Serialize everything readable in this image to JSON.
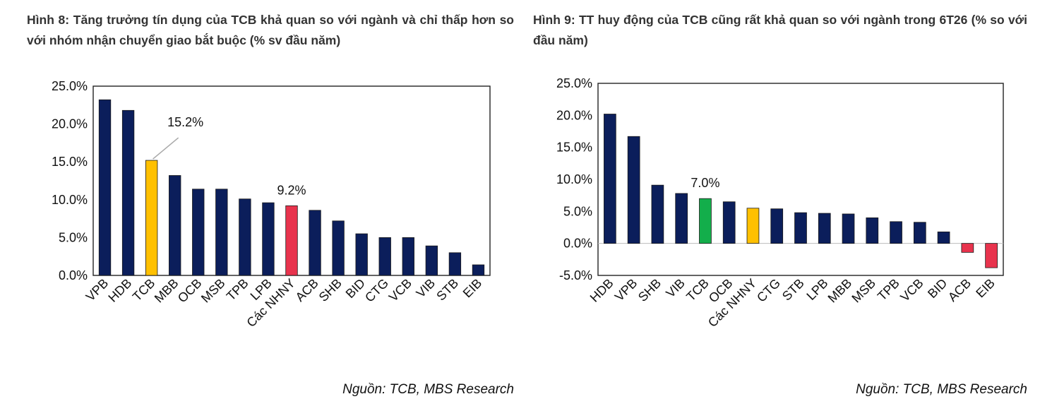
{
  "colors": {
    "navy": "#0B1E5B",
    "yellow": "#FFC000",
    "red": "#E8334D",
    "green": "#13AE4B"
  },
  "panel1": {
    "title": "Hình 8: Tăng trưởng tín dụng của TCB khả quan so với ngành và chỉ thấp hơn so với nhóm nhận chuyển giao bắt buộc (% sv đầu năm)",
    "source": "Nguồn: TCB, MBS Research"
  },
  "panel2": {
    "title": "Hình 9: TT huy động của TCB cũng rất khả quan so với ngành trong 6T26 (% so với đầu năm)",
    "source": "Nguồn: TCB, MBS Research"
  },
  "chart_data": [
    {
      "type": "bar",
      "title": "",
      "categories": [
        "VPB",
        "HDB",
        "TCB",
        "MBB",
        "OCB",
        "MSB",
        "TPB",
        "LPB",
        "Các NHNY",
        "ACB",
        "SHB",
        "BID",
        "CTG",
        "VCB",
        "VIB",
        "STB",
        "EIB"
      ],
      "values": [
        23.2,
        21.8,
        15.2,
        13.2,
        11.4,
        11.4,
        10.1,
        9.6,
        9.2,
        8.6,
        7.2,
        5.5,
        5.0,
        5.0,
        3.9,
        3.0,
        1.4
      ],
      "colors": [
        "navy",
        "navy",
        "yellow",
        "navy",
        "navy",
        "navy",
        "navy",
        "navy",
        "red",
        "navy",
        "navy",
        "navy",
        "navy",
        "navy",
        "navy",
        "navy",
        "navy"
      ],
      "annotations": [
        {
          "category": "TCB",
          "text": "15.2%",
          "leader": true
        },
        {
          "category": "Các NHNY",
          "text": "9.2%"
        }
      ],
      "y_ticks": [
        "0.0%",
        "5.0%",
        "10.0%",
        "15.0%",
        "20.0%",
        "25.0%"
      ],
      "ylim": [
        0,
        25
      ],
      "grid": false
    },
    {
      "type": "bar",
      "title": "",
      "categories": [
        "HDB",
        "VPB",
        "SHB",
        "VIB",
        "TCB",
        "OCB",
        "Các NHNY",
        "CTG",
        "STB",
        "LPB",
        "MBB",
        "MSB",
        "TPB",
        "VCB",
        "BID",
        "ACB",
        "EIB"
      ],
      "values": [
        20.2,
        16.7,
        9.1,
        7.8,
        7.0,
        6.5,
        5.5,
        5.4,
        4.8,
        4.7,
        4.6,
        4.0,
        3.4,
        3.3,
        1.8,
        -1.4,
        -3.8
      ],
      "colors": [
        "navy",
        "navy",
        "navy",
        "navy",
        "green",
        "navy",
        "yellow",
        "navy",
        "navy",
        "navy",
        "navy",
        "navy",
        "navy",
        "navy",
        "navy",
        "red",
        "red"
      ],
      "annotations": [
        {
          "category": "TCB",
          "text": "7.0%"
        }
      ],
      "y_ticks": [
        "-5.0%",
        "0.0%",
        "5.0%",
        "10.0%",
        "15.0%",
        "20.0%",
        "25.0%"
      ],
      "ylim": [
        -5,
        25
      ],
      "grid": false
    }
  ]
}
